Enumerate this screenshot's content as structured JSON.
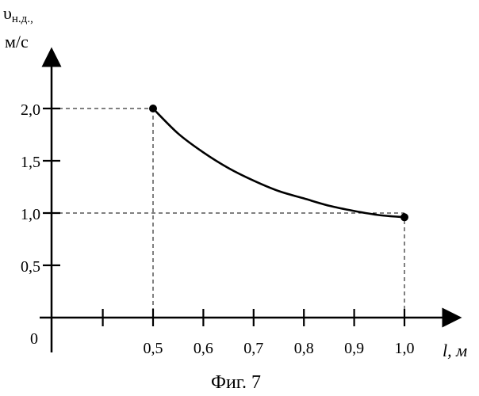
{
  "chart_data": {
    "type": "line",
    "ylabel_symbol": "υ",
    "ylabel_sub": "н.д.,",
    "ylabel_unit": "м/с",
    "xlabel_symbol": "l",
    "xlabel_unit": ", м",
    "origin_label": "0",
    "caption": "Фиг. 7",
    "xlim": [
      0,
      1.05
    ],
    "ylim": [
      0,
      2.5
    ],
    "x_ticks": [
      0.1,
      0.2,
      0.3,
      0.4,
      0.5,
      0.6,
      0.7,
      0.8,
      0.9,
      1.0
    ],
    "x_tick_labels": [
      {
        "value": 0.5,
        "label": "0,5"
      },
      {
        "value": 0.6,
        "label": "0,6"
      },
      {
        "value": 0.7,
        "label": "0,7"
      },
      {
        "value": 0.8,
        "label": "0,8"
      },
      {
        "value": 0.9,
        "label": "0,9"
      },
      {
        "value": 1.0,
        "label": "1,0"
      }
    ],
    "y_ticks": [
      {
        "value": 0.5,
        "label": "0,5"
      },
      {
        "value": 1.0,
        "label": "1,0"
      },
      {
        "value": 1.5,
        "label": "1,5"
      },
      {
        "value": 2.0,
        "label": "2,0"
      }
    ],
    "series": [
      {
        "x": [
          0.5,
          0.55,
          0.6,
          0.65,
          0.7,
          0.75,
          0.8,
          0.85,
          0.9,
          0.95,
          1.0
        ],
        "y": [
          2.0,
          1.76,
          1.58,
          1.43,
          1.31,
          1.21,
          1.14,
          1.07,
          1.02,
          0.98,
          0.96
        ]
      }
    ],
    "markers": [
      {
        "x": 0.5,
        "y": 2.0
      },
      {
        "x": 1.0,
        "y": 0.96
      }
    ],
    "guides": [
      {
        "x": 0.5,
        "y": 2.0
      },
      {
        "x": 1.0,
        "y": 1.0
      }
    ]
  }
}
